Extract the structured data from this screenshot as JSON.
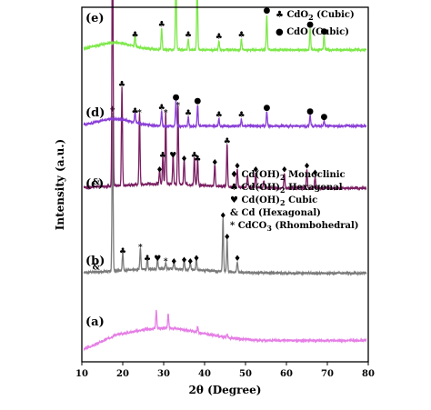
{
  "chart_data": {
    "type": "line",
    "xlabel": "2θ (Degree)",
    "ylabel": "Intensity (a.u.)",
    "xlim": [
      10,
      80
    ],
    "x_ticks": [
      10,
      20,
      30,
      40,
      50,
      60,
      70,
      80
    ],
    "grid": false,
    "colors": {
      "a": "#e57ee5",
      "b": "#7a7a7a",
      "c": "#7a1f62",
      "d": "#8a3fd6",
      "e": "#7ee84a"
    },
    "series": [
      {
        "name": "(a)",
        "color_key": "a",
        "baseline_level": 0.06,
        "peaks": [
          [
            28.2,
            0.05
          ],
          [
            31.1,
            0.04
          ],
          [
            38.3,
            0.015
          ],
          [
            45.5,
            0.01
          ]
        ],
        "markers": []
      },
      {
        "name": "(b)",
        "color_key": "b",
        "baseline_level": 0.25,
        "peaks": [
          [
            17.5,
            0.45
          ],
          [
            20.0,
            0.05
          ],
          [
            24.3,
            0.06
          ],
          [
            26.0,
            0.03
          ],
          [
            28.5,
            0.03
          ],
          [
            30.5,
            0.02
          ],
          [
            32.5,
            0.02
          ],
          [
            35.0,
            0.025
          ],
          [
            36.5,
            0.02
          ],
          [
            38.0,
            0.03
          ],
          [
            44.5,
            0.15
          ],
          [
            45.5,
            0.09
          ],
          [
            48.0,
            0.03
          ]
        ],
        "markers": [
          {
            "x": 17.5,
            "sym": "♦"
          },
          {
            "x": 20.0,
            "sym": "♣"
          },
          {
            "x": 24.3,
            "sym": "*"
          },
          {
            "x": 26.0,
            "sym": "♣"
          },
          {
            "x": 28.5,
            "sym": "♥"
          },
          {
            "x": 30.5,
            "sym": "*"
          },
          {
            "x": 32.5,
            "sym": "♦"
          },
          {
            "x": 35.0,
            "sym": "♦"
          },
          {
            "x": 36.5,
            "sym": "♦"
          },
          {
            "x": 38.0,
            "sym": "♦"
          },
          {
            "x": 44.5,
            "sym": "♦"
          },
          {
            "x": 45.5,
            "sym": "♦"
          },
          {
            "x": 48.0,
            "sym": "♦"
          }
        ],
        "extra_label": {
          "x": 13.5,
          "text": "&"
        }
      },
      {
        "name": "(c)",
        "color_key": "c",
        "baseline_level": 0.49,
        "peaks": [
          [
            17.5,
            0.85
          ],
          [
            19.8,
            0.28
          ],
          [
            24.1,
            0.2
          ],
          [
            29.0,
            0.04
          ],
          [
            29.8,
            0.08
          ],
          [
            30.5,
            0.2
          ],
          [
            32.3,
            0.08
          ],
          [
            33.5,
            0.22
          ],
          [
            35.0,
            0.07
          ],
          [
            37.5,
            0.08
          ],
          [
            38.3,
            0.07
          ],
          [
            42.5,
            0.06
          ],
          [
            45.5,
            0.12
          ],
          [
            48.0,
            0.05
          ],
          [
            50.5,
            0.03
          ],
          [
            52.5,
            0.04
          ],
          [
            54.5,
            0.02
          ],
          [
            59.5,
            0.04
          ],
          [
            65.0,
            0.05
          ],
          [
            67.0,
            0.03
          ]
        ],
        "markers": [
          {
            "x": 17.5,
            "sym": "♦"
          },
          {
            "x": 19.8,
            "sym": "♣"
          },
          {
            "x": 24.1,
            "sym": "*"
          },
          {
            "x": 29.0,
            "sym": "♦"
          },
          {
            "x": 29.8,
            "sym": "♣"
          },
          {
            "x": 30.5,
            "sym": "*"
          },
          {
            "x": 32.3,
            "sym": "♥"
          },
          {
            "x": 33.5,
            "sym": "*"
          },
          {
            "x": 35.0,
            "sym": "♦"
          },
          {
            "x": 37.5,
            "sym": "♣"
          },
          {
            "x": 38.3,
            "sym": "♣"
          },
          {
            "x": 42.5,
            "sym": "♦"
          },
          {
            "x": 45.5,
            "sym": "♣"
          },
          {
            "x": 48.0,
            "sym": "♦"
          },
          {
            "x": 52.5,
            "sym": "♦"
          },
          {
            "x": 59.5,
            "sym": "♦"
          },
          {
            "x": 65.0,
            "sym": "♦"
          },
          {
            "x": 67.0,
            "sym": "♦"
          }
        ],
        "extra_label": {
          "x": 13.5,
          "text": "&"
        }
      },
      {
        "name": "(d)",
        "color_key": "d",
        "baseline_level": 0.665,
        "peaks": [
          [
            23.0,
            0.03
          ],
          [
            29.5,
            0.04
          ],
          [
            33.0,
            0.07
          ],
          [
            36.0,
            0.025
          ],
          [
            38.3,
            0.06
          ],
          [
            43.5,
            0.02
          ],
          [
            49.0,
            0.02
          ],
          [
            55.2,
            0.04
          ],
          [
            65.8,
            0.03
          ],
          [
            69.2,
            0.015
          ]
        ],
        "markers": [
          {
            "x": 23.0,
            "sym": "♣"
          },
          {
            "x": 29.5,
            "sym": "♣"
          },
          {
            "x": 33.0,
            "sym": "●"
          },
          {
            "x": 36.0,
            "sym": "♣"
          },
          {
            "x": 38.3,
            "sym": "●"
          },
          {
            "x": 43.5,
            "sym": "♣"
          },
          {
            "x": 49.0,
            "sym": "♣"
          },
          {
            "x": 55.2,
            "sym": "●"
          },
          {
            "x": 65.8,
            "sym": "●"
          },
          {
            "x": 69.2,
            "sym": "●"
          }
        ]
      },
      {
        "name": "(e)",
        "color_key": "e",
        "baseline_level": 0.88,
        "peaks": [
          [
            23.0,
            0.03
          ],
          [
            29.5,
            0.06
          ],
          [
            33.0,
            0.22
          ],
          [
            36.0,
            0.03
          ],
          [
            38.2,
            0.19
          ],
          [
            43.5,
            0.025
          ],
          [
            49.0,
            0.03
          ],
          [
            55.2,
            0.1
          ],
          [
            65.8,
            0.06
          ],
          [
            69.2,
            0.04
          ]
        ],
        "markers": [
          {
            "x": 23.0,
            "sym": "♣"
          },
          {
            "x": 29.5,
            "sym": "♣"
          },
          {
            "x": 33.0,
            "sym": "●"
          },
          {
            "x": 36.0,
            "sym": "♣"
          },
          {
            "x": 38.2,
            "sym": "●"
          },
          {
            "x": 43.5,
            "sym": "♣"
          },
          {
            "x": 49.0,
            "sym": "♣"
          },
          {
            "x": 55.2,
            "sym": "●"
          },
          {
            "x": 65.8,
            "sym": "●"
          },
          {
            "x": 69.2,
            "sym": "●"
          }
        ]
      }
    ],
    "legend_top": {
      "placement": "top-right",
      "entries": [
        {
          "sym": "♣",
          "label": "CdO",
          "sub": "2",
          "suffix": " (Cubic)"
        },
        {
          "sym": "●",
          "label": "CdO (Cubic)",
          "sub": "",
          "suffix": ""
        }
      ]
    },
    "legend_mid": {
      "placement": "right, beside trace (c)",
      "entries": [
        {
          "sym": "♦",
          "label": "Cd(OH)",
          "sub": "2",
          "suffix": " Monoclinic"
        },
        {
          "sym": "♣",
          "label": "Cd(OH)",
          "sub": "2",
          "suffix": " Hexagonal"
        },
        {
          "sym": "♥",
          "label": "Cd(OH)",
          "sub": "2",
          "suffix": " Cubic"
        },
        {
          "sym": "&",
          "label": "Cd (Hexagonal)",
          "sub": "",
          "suffix": ""
        },
        {
          "sym": "*",
          "label": "CdCO",
          "sub": "3",
          "suffix": " (Rhombohedral)"
        }
      ]
    }
  }
}
